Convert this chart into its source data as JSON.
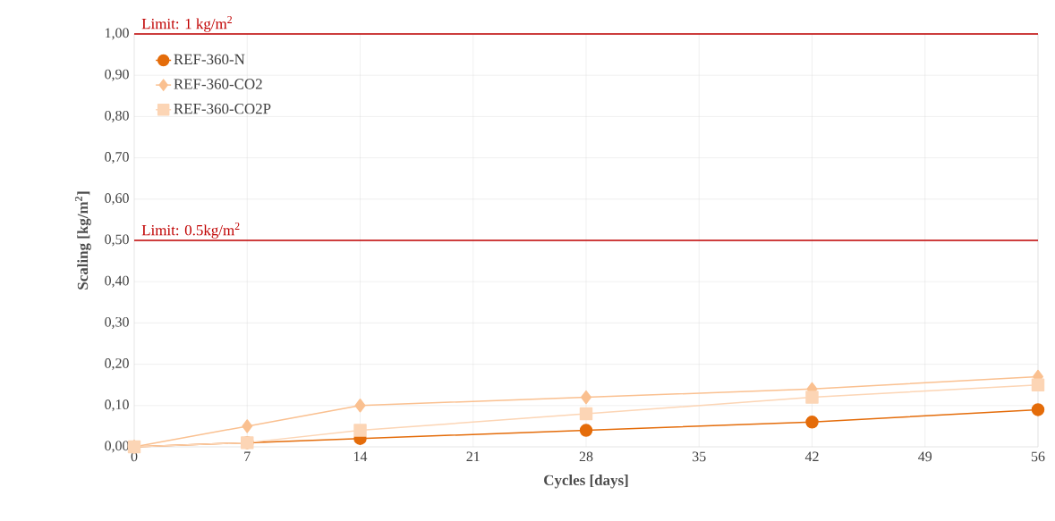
{
  "chart_data": {
    "type": "line",
    "xlabel": "Cycles [days]",
    "ylabel": "Scaling [kg/m$^{2}$]",
    "x": [
      0,
      7,
      14,
      28,
      42,
      56
    ],
    "series": [
      {
        "name": "REF-360-N",
        "color": "#e46c0a",
        "marker": "circle",
        "values": [
          0,
          0.01,
          0.02,
          0.04,
          0.06,
          0.09
        ]
      },
      {
        "name": "REF-360-CO2",
        "color": "#fac090",
        "marker": "diamond",
        "values": [
          0,
          0.05,
          0.1,
          0.12,
          0.14,
          0.17
        ]
      },
      {
        "name": "REF-360-CO2P",
        "color": "#fcd5b5",
        "marker": "square",
        "values": [
          0,
          0.01,
          0.04,
          0.08,
          0.12,
          0.15
        ]
      }
    ],
    "xlim": [
      0,
      56
    ],
    "xticks": [
      0,
      7,
      14,
      21,
      28,
      35,
      42,
      49,
      56
    ],
    "ylim": [
      0,
      1
    ],
    "yticks": [
      {
        "value": 0,
        "label": "0,00"
      },
      {
        "value": 0.1,
        "label": "0,10"
      },
      {
        "value": 0.2,
        "label": "0,20"
      },
      {
        "value": 0.3,
        "label": "0,30"
      },
      {
        "value": 0.4,
        "label": "0,40"
      },
      {
        "value": 0.5,
        "label": "0,50"
      },
      {
        "value": 0.6,
        "label": "0,60"
      },
      {
        "value": 0.7,
        "label": "0,70"
      },
      {
        "value": 0.8,
        "label": "0,80"
      },
      {
        "value": 0.9,
        "label": "0,90"
      },
      {
        "value": 1,
        "label": "1,00"
      }
    ],
    "ref_lines": [
      {
        "axis": "y",
        "value": 1,
        "label": "Limit: 1 kg/m$^{2}$",
        "color": "#c00000"
      },
      {
        "axis": "y",
        "value": 0.5,
        "label": "Limit: 0.5kg/m$^{2}$",
        "color": "#c00000"
      }
    ],
    "grid": true,
    "legend": "top left",
    "line_style": "solid"
  }
}
